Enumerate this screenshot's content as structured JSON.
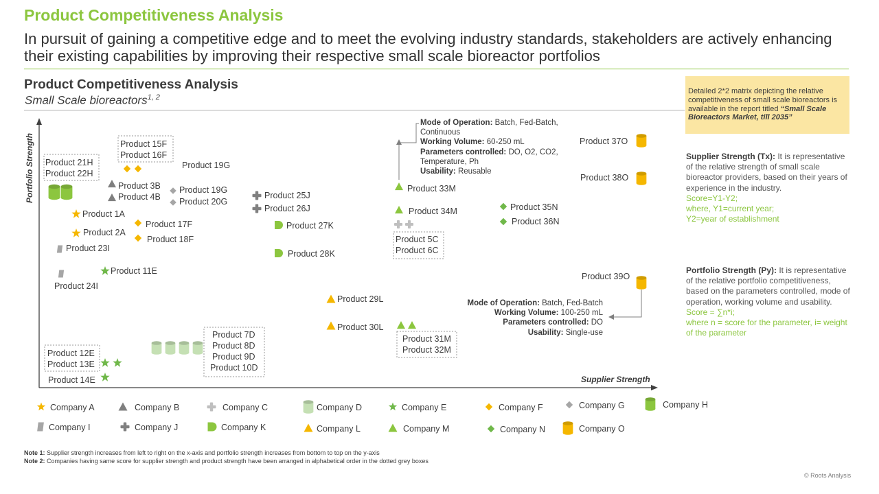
{
  "header": {
    "title": "Product Competitiveness Analysis",
    "subtitle": "In pursuit of gaining a competitive edge and to meet the evolving industry standards, stakeholders are actively enhancing their existing capabilities by improving their respective small scale bioreactor portfolios"
  },
  "chart_data": {
    "type": "scatter",
    "title": "Product Competitiveness Analysis",
    "subtitle": "Small Scale bioreactors",
    "subtitle_sup": "1, 2",
    "xlabel": "Supplier Strength",
    "ylabel": "Portfolio Strength",
    "legend_position": "bottom",
    "companies": [
      {
        "name": "Company A",
        "marker": "star",
        "color": "#f5b700"
      },
      {
        "name": "Company B",
        "marker": "triangle",
        "color": "#7f7f7f"
      },
      {
        "name": "Company C",
        "marker": "cross",
        "color": "#bfbfbf"
      },
      {
        "name": "Company D",
        "marker": "cylinder",
        "color": "#c5e0b4"
      },
      {
        "name": "Company E",
        "marker": "star",
        "color": "#70b84a"
      },
      {
        "name": "Company F",
        "marker": "diamond",
        "color": "#f5b700"
      },
      {
        "name": "Company G",
        "marker": "diamond",
        "color": "#a6a6a6"
      },
      {
        "name": "Company H",
        "marker": "cylinder",
        "color": "#8cc63f"
      },
      {
        "name": "Company I",
        "marker": "parallelogram",
        "color": "#a6a6a6"
      },
      {
        "name": "Company J",
        "marker": "cross",
        "color": "#808080"
      },
      {
        "name": "Company K",
        "marker": "d-shape",
        "color": "#8cc63f"
      },
      {
        "name": "Company L",
        "marker": "triangle",
        "color": "#f5b700"
      },
      {
        "name": "Company M",
        "marker": "triangle",
        "color": "#8cc63f"
      },
      {
        "name": "Company N",
        "marker": "diamond",
        "color": "#70b84a"
      },
      {
        "name": "Company O",
        "marker": "cylinder",
        "color": "#f5b700"
      }
    ],
    "points": [
      {
        "label": "Product 21H",
        "company": "Company H"
      },
      {
        "label": "Product 22H",
        "company": "Company H"
      },
      {
        "label": "Product 15F",
        "company": "Company F"
      },
      {
        "label": "Product 16F",
        "company": "Company F"
      },
      {
        "label": "Product 19G",
        "company": "Company G"
      },
      {
        "label": "Product 3B",
        "company": "Company B"
      },
      {
        "label": "Product 4B",
        "company": "Company B"
      },
      {
        "label": "Product 19G",
        "company": "Company G"
      },
      {
        "label": "Product 20G",
        "company": "Company G"
      },
      {
        "label": "Product 1A",
        "company": "Company A"
      },
      {
        "label": "Product 2A",
        "company": "Company A"
      },
      {
        "label": "Product 17F",
        "company": "Company F"
      },
      {
        "label": "Product 18F",
        "company": "Company F"
      },
      {
        "label": "Product 23I",
        "company": "Company I"
      },
      {
        "label": "Product 24I",
        "company": "Company I"
      },
      {
        "label": "Product 11E",
        "company": "Company E"
      },
      {
        "label": "Product 25J",
        "company": "Company J"
      },
      {
        "label": "Product 26J",
        "company": "Company J"
      },
      {
        "label": "Product 27K",
        "company": "Company K"
      },
      {
        "label": "Product 28K",
        "company": "Company K"
      },
      {
        "label": "Product 29L",
        "company": "Company L"
      },
      {
        "label": "Product 30L",
        "company": "Company L"
      },
      {
        "label": "Product 12E",
        "company": "Company E"
      },
      {
        "label": "Product 13E",
        "company": "Company E"
      },
      {
        "label": "Product 14E",
        "company": "Company E"
      },
      {
        "label": "Product 7D",
        "company": "Company D"
      },
      {
        "label": "Product 8D",
        "company": "Company D"
      },
      {
        "label": "Product 9D",
        "company": "Company D"
      },
      {
        "label": "Product 10D",
        "company": "Company D"
      },
      {
        "label": "Product 33M",
        "company": "Company M"
      },
      {
        "label": "Product 34M",
        "company": "Company M"
      },
      {
        "label": "Product 5C",
        "company": "Company C"
      },
      {
        "label": "Product 6C",
        "company": "Company C"
      },
      {
        "label": "Product 31M",
        "company": "Company M"
      },
      {
        "label": "Product 32M",
        "company": "Company M"
      },
      {
        "label": "Product 35N",
        "company": "Company N"
      },
      {
        "label": "Product 36N",
        "company": "Company N"
      },
      {
        "label": "Product 37O",
        "company": "Company O"
      },
      {
        "label": "Product 38O",
        "company": "Company O"
      },
      {
        "label": "Product 39O",
        "company": "Company O"
      }
    ],
    "callouts": [
      {
        "mode_label": "Mode of Operation:",
        "mode_value": "Batch, Fed-Batch, Continuous",
        "volume_label": "Working Volume:",
        "volume_value": "60-250 mL",
        "params_label": "Parameters controlled:",
        "params_value": "DO, O2, CO2, Temperature, Ph",
        "usability_label": "Usability:",
        "usability_value": "Reusable"
      },
      {
        "mode_label": "Mode of Operation:",
        "mode_value": "Batch, Fed-Batch",
        "volume_label": "Working Volume:",
        "volume_value": "100-250 mL",
        "params_label": "Parameters controlled:",
        "params_value": "DO",
        "usability_label": "Usability:",
        "usability_value": "Single-use"
      }
    ]
  },
  "sidebar": {
    "note_text": "Detailed 2*2 matrix depicting the relative competitiveness of small scale bioreactors is available in the report titled",
    "note_report": "“Small Scale Bioreactors Market, till 2035”",
    "supplier_label": "Supplier Strength (Tx):",
    "supplier_text": "It is representative of the relative strength of small scale bioreactor providers, based on their years of experience in the industry.",
    "supplier_formula": "Score=Y1-Y2;",
    "supplier_where": "where, Y1=current year;",
    "supplier_y2": "Y2=year of establishment",
    "portfolio_label": "Portfolio Strength (Py):",
    "portfolio_text": "It is representative of the relative portfolio competitiveness, based on the parameters controlled, mode of operation, working volume and usability.",
    "portfolio_formula": "Score = ∑n*i;",
    "portfolio_where": "where n = score for the parameter, i= weight of the parameter"
  },
  "footnotes": {
    "note1_label": "Note 1:",
    "note1_text": "Supplier strength increases from left to right on the x-axis and portfolio strength increases from bottom to top on the y-axis",
    "note2_label": "Note 2:",
    "note2_text": "Companies having same score for supplier strength and product strength have been arranged in alphabetical order in the dotted grey boxes",
    "copyright": "© Roots Analysis"
  }
}
